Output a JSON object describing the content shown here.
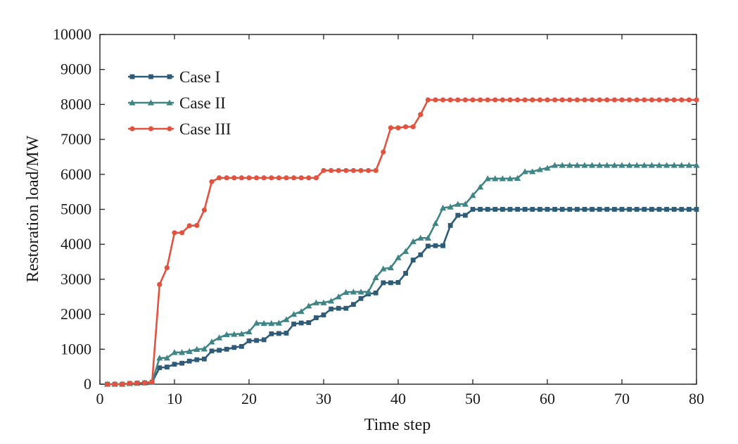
{
  "chart_data": {
    "type": "line",
    "title": "",
    "xlabel": "Time step",
    "ylabel": "Restoration load/MW",
    "xlim": [
      0,
      80
    ],
    "ylim": [
      0,
      10000
    ],
    "xticks": [
      0,
      10,
      20,
      30,
      40,
      50,
      60,
      70,
      80
    ],
    "yticks": [
      0,
      1000,
      2000,
      3000,
      4000,
      5000,
      6000,
      7000,
      8000,
      9000,
      10000
    ],
    "grid": false,
    "legend_position": "top-left",
    "x": [
      1,
      2,
      3,
      4,
      5,
      6,
      7,
      8,
      9,
      10,
      11,
      12,
      13,
      14,
      15,
      16,
      17,
      18,
      19,
      20,
      21,
      22,
      23,
      24,
      25,
      26,
      27,
      28,
      29,
      30,
      31,
      32,
      33,
      34,
      35,
      36,
      37,
      38,
      39,
      40,
      41,
      42,
      43,
      44,
      45,
      46,
      47,
      48,
      49,
      50,
      51,
      52,
      53,
      54,
      55,
      56,
      57,
      58,
      59,
      60,
      61,
      62,
      63,
      64,
      65,
      66,
      67,
      68,
      69,
      70,
      71,
      72,
      73,
      74,
      75,
      76,
      77,
      78,
      79,
      80
    ],
    "series": [
      {
        "name": "Case I",
        "color": "#2d5b78",
        "marker": "square",
        "values": [
          0,
          0,
          0,
          20,
          30,
          40,
          60,
          470,
          490,
          570,
          600,
          660,
          700,
          720,
          950,
          970,
          1000,
          1050,
          1080,
          1240,
          1250,
          1270,
          1440,
          1450,
          1460,
          1720,
          1750,
          1760,
          1900,
          1980,
          2150,
          2170,
          2170,
          2280,
          2450,
          2580,
          2610,
          2900,
          2900,
          2910,
          3170,
          3550,
          3700,
          3950,
          3960,
          3960,
          4540,
          4830,
          4830,
          5000,
          5000,
          5000,
          5000,
          5000,
          5000,
          5000,
          5000,
          5000,
          5000,
          5000,
          5000,
          5000,
          5000,
          5000,
          5000,
          5000,
          5000,
          5000,
          5000,
          5000,
          5000,
          5000,
          5000,
          5000,
          5000,
          5000,
          5000,
          5000,
          5000,
          5000
        ]
      },
      {
        "name": "Case II",
        "color": "#3f8585",
        "marker": "triangle",
        "values": [
          0,
          0,
          0,
          20,
          30,
          40,
          60,
          750,
          750,
          910,
          910,
          940,
          1000,
          1010,
          1210,
          1330,
          1420,
          1430,
          1440,
          1500,
          1750,
          1740,
          1740,
          1750,
          1850,
          2000,
          2080,
          2240,
          2330,
          2330,
          2380,
          2500,
          2630,
          2640,
          2640,
          2640,
          3050,
          3300,
          3330,
          3620,
          3800,
          4080,
          4180,
          4180,
          4600,
          5040,
          5070,
          5150,
          5150,
          5400,
          5640,
          5880,
          5880,
          5880,
          5880,
          5890,
          6080,
          6080,
          6140,
          6180,
          6260,
          6260,
          6260,
          6260,
          6260,
          6260,
          6260,
          6260,
          6260,
          6260,
          6260,
          6260,
          6260,
          6260,
          6260,
          6260,
          6260,
          6260,
          6260,
          6260
        ]
      },
      {
        "name": "Case III",
        "color": "#e2533f",
        "marker": "circle",
        "values": [
          0,
          0,
          0,
          20,
          30,
          40,
          60,
          2850,
          3330,
          4330,
          4330,
          4530,
          4540,
          4980,
          5790,
          5900,
          5900,
          5900,
          5900,
          5900,
          5900,
          5900,
          5900,
          5900,
          5900,
          5900,
          5900,
          5900,
          5900,
          6110,
          6110,
          6110,
          6110,
          6110,
          6110,
          6110,
          6110,
          6640,
          7330,
          7330,
          7360,
          7360,
          7710,
          8130,
          8130,
          8130,
          8130,
          8130,
          8130,
          8130,
          8130,
          8130,
          8130,
          8130,
          8130,
          8130,
          8130,
          8130,
          8130,
          8130,
          8130,
          8130,
          8130,
          8130,
          8130,
          8130,
          8130,
          8130,
          8130,
          8130,
          8130,
          8130,
          8130,
          8130,
          8130,
          8130,
          8130,
          8130,
          8130,
          8130
        ]
      }
    ]
  }
}
